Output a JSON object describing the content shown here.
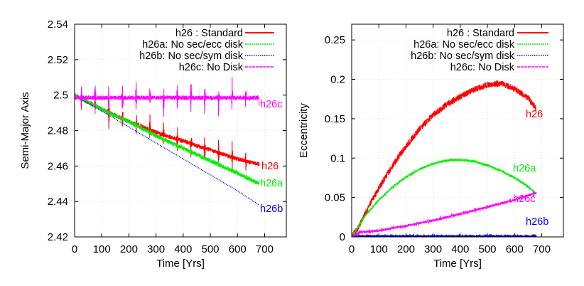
{
  "chart_data": [
    {
      "type": "line",
      "xlabel": "Time [Yrs]",
      "ylabel": "Semi-Major Axis",
      "xlim": [
        0,
        780
      ],
      "ylim": [
        2.42,
        2.54
      ],
      "xticks": [
        "0",
        "100",
        "200",
        "300",
        "400",
        "500",
        "600",
        "700"
      ],
      "yticks": [
        "2.42",
        "2.44",
        "2.46",
        "2.48",
        "2.5",
        "2.52",
        "2.54"
      ],
      "series": [
        {
          "name": "h26 : Standard",
          "end_label": "h26",
          "color": "#ff0000",
          "x": [
            0,
            100,
            200,
            300,
            400,
            500,
            600,
            680
          ],
          "y": [
            2.5,
            2.492,
            2.485,
            2.479,
            2.474,
            2.469,
            2.464,
            2.461
          ]
        },
        {
          "name": "h26a: No sec/ecc disk",
          "end_label": "h26a",
          "color": "#00ee00",
          "x": [
            0,
            100,
            200,
            300,
            400,
            500,
            600,
            680
          ],
          "y": [
            2.5,
            2.492,
            2.485,
            2.477,
            2.47,
            2.463,
            2.456,
            2.45
          ]
        },
        {
          "name": "h26b: No sec/sym disk",
          "end_label": "h26b",
          "color": "#0000ff",
          "x": [
            0,
            100,
            200,
            300,
            400,
            500,
            600,
            680
          ],
          "y": [
            2.5,
            2.491,
            2.482,
            2.473,
            2.464,
            2.455,
            2.446,
            2.438
          ]
        },
        {
          "name": "h26c: No Disk",
          "end_label": "h26c",
          "color": "#ff00ff",
          "x": [
            0,
            100,
            200,
            300,
            400,
            500,
            600,
            680
          ],
          "y": [
            2.4985,
            2.4985,
            2.4985,
            2.4985,
            2.4985,
            2.4985,
            2.4985,
            2.4985
          ]
        }
      ]
    },
    {
      "type": "line",
      "xlabel": "Time [Yrs]",
      "ylabel": "Eccentricity",
      "xlim": [
        0,
        780
      ],
      "ylim": [
        0,
        0.27
      ],
      "xticks": [
        "0",
        "100",
        "200",
        "300",
        "400",
        "500",
        "600",
        "700"
      ],
      "yticks": [
        "0",
        "0.05",
        "0.1",
        "0.15",
        "0.2",
        "0.25"
      ],
      "series": [
        {
          "name": "h26 : Standard",
          "end_label": "h26",
          "color": "#ff0000",
          "x": [
            0,
            25,
            50,
            100,
            150,
            200,
            250,
            300,
            350,
            400,
            450,
            500,
            550,
            600,
            650,
            680
          ],
          "y": [
            0,
            0.012,
            0.03,
            0.062,
            0.09,
            0.115,
            0.137,
            0.155,
            0.168,
            0.178,
            0.187,
            0.193,
            0.195,
            0.188,
            0.176,
            0.163
          ]
        },
        {
          "name": "h26a: No sec/ecc disk",
          "end_label": "h26a",
          "color": "#00ee00",
          "x": [
            0,
            50,
            100,
            150,
            200,
            250,
            300,
            350,
            400,
            450,
            500,
            550,
            600,
            650,
            680
          ],
          "y": [
            0,
            0.027,
            0.047,
            0.063,
            0.076,
            0.086,
            0.093,
            0.097,
            0.098,
            0.096,
            0.091,
            0.084,
            0.075,
            0.064,
            0.055
          ]
        },
        {
          "name": "h26b: No sec/sym disk",
          "end_label": "h26b",
          "color": "#0000ff",
          "x": [
            0,
            100,
            200,
            300,
            400,
            500,
            600,
            680
          ],
          "y": [
            0.001,
            0.001,
            0.001,
            0.001,
            0.001,
            0.001,
            0.001,
            0.001
          ]
        },
        {
          "name": "h26c: No Disk",
          "end_label": "h26c",
          "color": "#ff00ff",
          "x": [
            0,
            30,
            100,
            200,
            300,
            400,
            500,
            600,
            680
          ],
          "y": [
            0,
            0.006,
            0.008,
            0.014,
            0.021,
            0.029,
            0.038,
            0.047,
            0.056
          ]
        }
      ]
    }
  ]
}
